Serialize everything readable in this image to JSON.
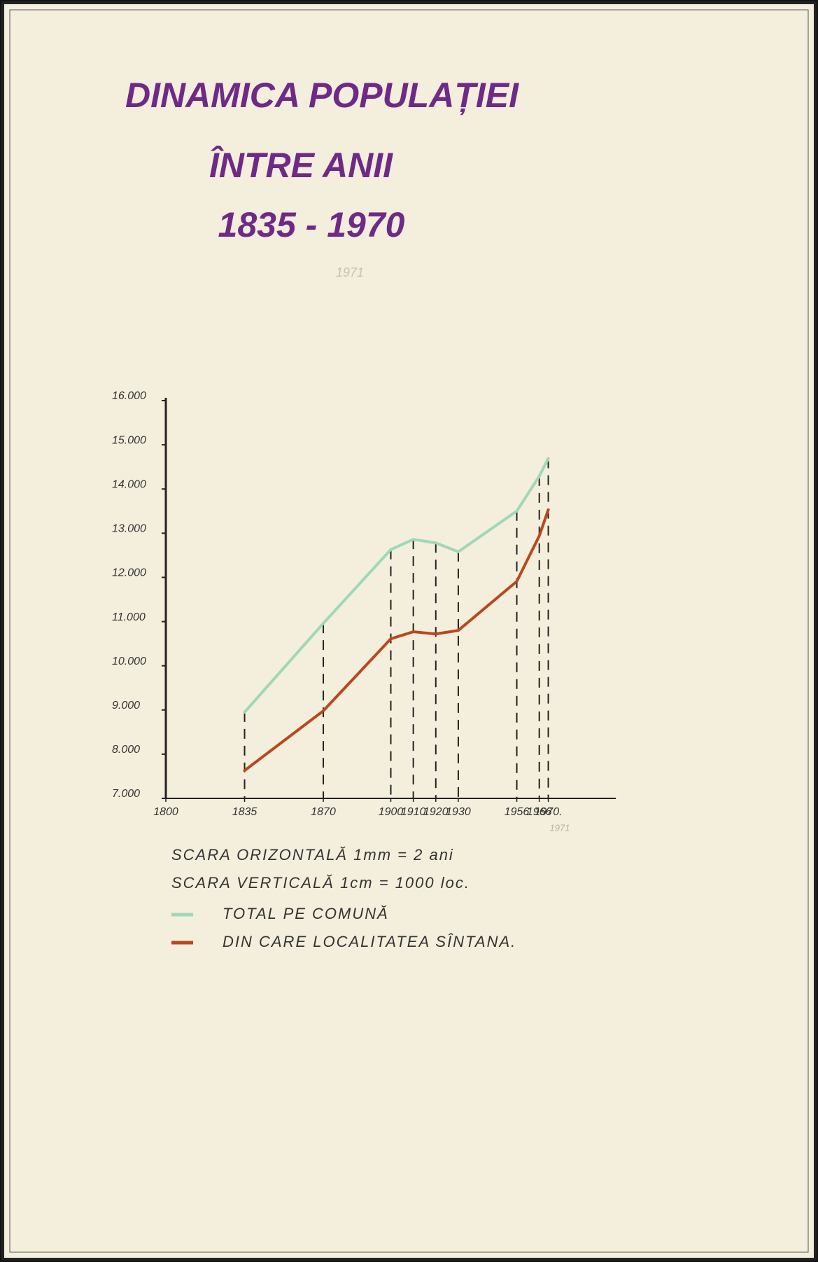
{
  "chart_data": {
    "type": "line",
    "title_lines": [
      "DINAMICA POPULAȚIEI",
      "ÎNTRE ANII",
      "1835 - 1970"
    ],
    "x": [
      1835,
      1870,
      1900,
      1910,
      1920,
      1930,
      1956,
      1966,
      1970
    ],
    "series": [
      {
        "name": "TOTAL PE COMUNĂ",
        "color": "#9fd8b8",
        "values": [
          8950,
          10960,
          12630,
          12860,
          12780,
          12580,
          13500,
          14290,
          14690
        ]
      },
      {
        "name": "DIN CARE LOCALITATEA SÎNTANA.",
        "color": "#b8481e",
        "values": [
          7630,
          8980,
          10610,
          10770,
          10720,
          10800,
          11910,
          12940,
          13530
        ]
      }
    ],
    "xlim": [
      1800,
      2000
    ],
    "xticks": [
      1800,
      1835,
      1870,
      1900,
      1910,
      1920,
      1930,
      1956,
      1966,
      {
        "value": 1970,
        "label": "1970."
      }
    ],
    "ylim": [
      7000,
      16000
    ],
    "yticks": [
      {
        "value": 7000,
        "label": "7.000"
      },
      {
        "value": 8000,
        "label": "8.000"
      },
      {
        "value": 9000,
        "label": "9.000"
      },
      {
        "value": 10000,
        "label": "10.000"
      },
      {
        "value": 11000,
        "label": "11.000"
      },
      {
        "value": 12000,
        "label": "12.000"
      },
      {
        "value": 13000,
        "label": "13.000"
      },
      {
        "value": 14000,
        "label": "14.000"
      },
      {
        "value": 15000,
        "label": "15.000"
      },
      {
        "value": 16000,
        "label": "16.000"
      }
    ],
    "notes": [
      "SCARA ORIZONTALĂ 1mm = 2 ani",
      "SCARA VERTICALĂ 1cm = 1000 loc."
    ],
    "annotations": [
      "1971",
      "1971"
    ],
    "drop_lines": true,
    "legend": "bottom-left"
  }
}
